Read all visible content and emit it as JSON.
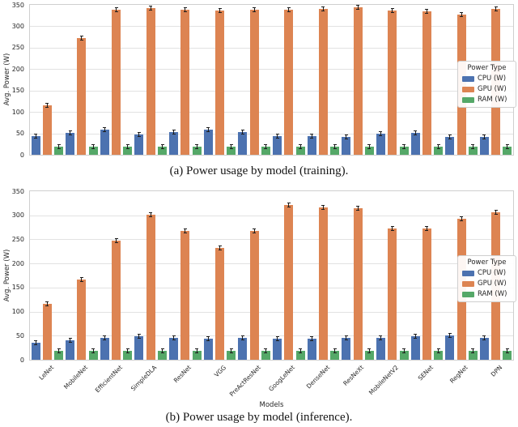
{
  "figure": {
    "type": "paper-figure-two-bar-charts"
  },
  "chart_data": [
    {
      "id": "training",
      "type": "bar",
      "caption": "(a) Power usage by model (training).",
      "ylabel": "Avg. Power (W)",
      "xlabel": "",
      "ylim": [
        0,
        350
      ],
      "yticks": [
        0,
        50,
        100,
        150,
        200,
        250,
        300,
        350
      ],
      "grid": true,
      "error_bars": true,
      "show_x_labels": false,
      "legend": {
        "title": "Power Type",
        "position": "center-right"
      },
      "categories": [
        "LeNet",
        "MobileNet",
        "EfficientNet",
        "SimpleDLA",
        "ResNet",
        "VGG",
        "PreActResNet",
        "GoogLeNet",
        "DenseNet",
        "ResNeXt",
        "MobileNetV2",
        "SENet",
        "RegNet",
        "DPN"
      ],
      "series": [
        {
          "name": "CPU (W)",
          "color": "#4C72B0",
          "values": [
            43,
            52,
            59,
            47,
            53,
            59,
            53,
            43,
            44,
            41,
            50,
            52,
            42,
            41
          ]
        },
        {
          "name": "GPU (W)",
          "color": "#DD8452",
          "values": [
            116,
            273,
            338,
            342,
            338,
            337,
            338,
            338,
            340,
            345,
            336,
            334,
            328,
            341
          ]
        },
        {
          "name": "RAM (W)",
          "color": "#55A868",
          "values": [
            19,
            19,
            19,
            19,
            19,
            19,
            19,
            19,
            19,
            19,
            19,
            19,
            19,
            19
          ]
        }
      ]
    },
    {
      "id": "inference",
      "type": "bar",
      "caption": "(b) Power usage by model (inference).",
      "ylabel": "Avg. Power (W)",
      "xlabel": "Models",
      "ylim": [
        0,
        350
      ],
      "yticks": [
        0,
        50,
        100,
        150,
        200,
        250,
        300,
        350
      ],
      "grid": true,
      "error_bars": true,
      "show_x_labels": true,
      "legend": {
        "title": "Power Type",
        "position": "center-right"
      },
      "categories": [
        "LeNet",
        "MobileNet",
        "EfficientNet",
        "SimpleDLA",
        "ResNet",
        "VGG",
        "PreActResNet",
        "GoogLeNet",
        "DenseNet",
        "ResNeXt",
        "MobileNetV2",
        "SENet",
        "RegNet",
        "DPN"
      ],
      "series": [
        {
          "name": "CPU (W)",
          "color": "#4C72B0",
          "values": [
            36,
            41,
            46,
            48,
            45,
            43,
            45,
            44,
            44,
            46,
            45,
            48,
            51,
            45
          ]
        },
        {
          "name": "GPU (W)",
          "color": "#DD8452",
          "values": [
            116,
            167,
            247,
            302,
            267,
            232,
            267,
            322,
            316,
            315,
            272,
            272,
            292,
            307
          ]
        },
        {
          "name": "RAM (W)",
          "color": "#55A868",
          "values": [
            18,
            18,
            18,
            18,
            18,
            18,
            18,
            18,
            18,
            18,
            18,
            18,
            18,
            18
          ]
        }
      ]
    }
  ]
}
